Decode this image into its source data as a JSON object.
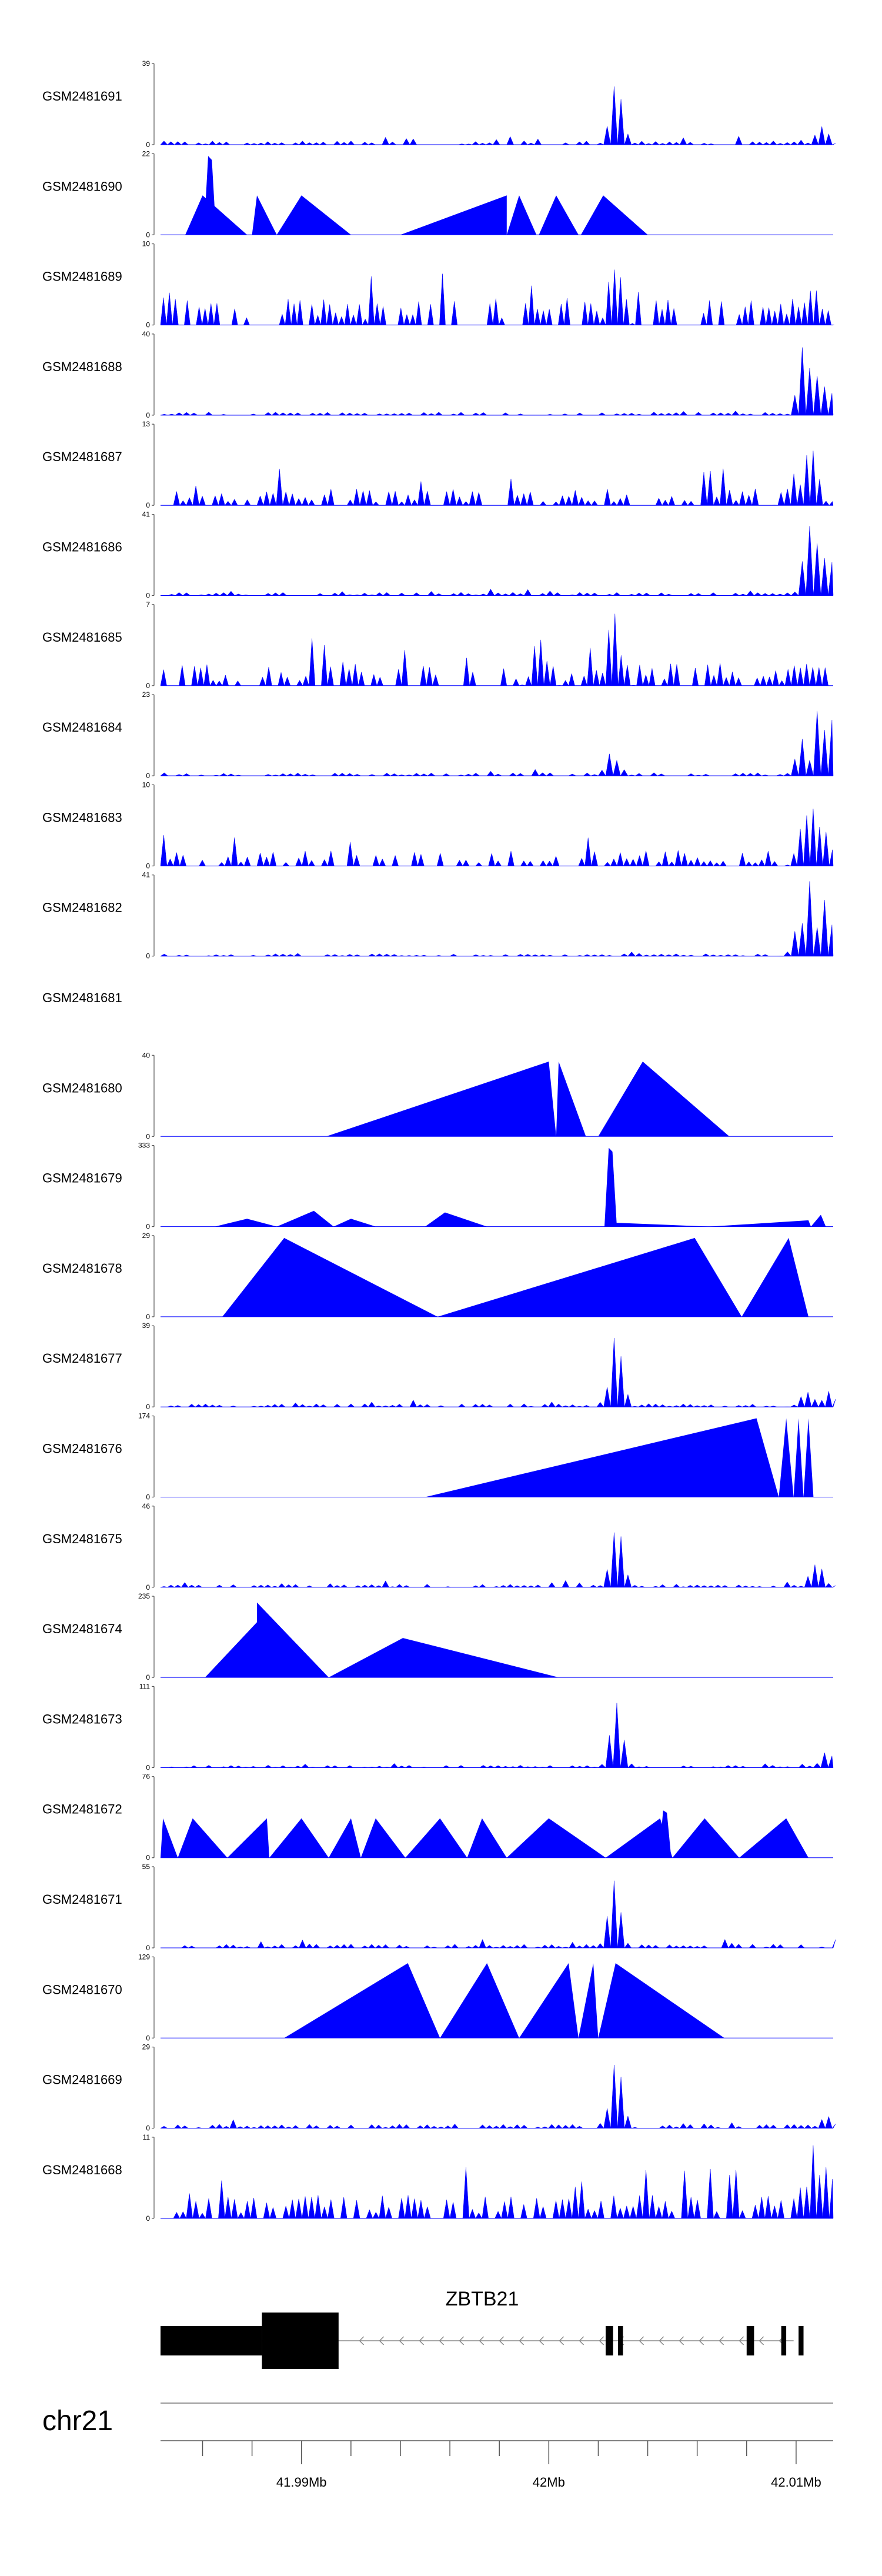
{
  "chart_data": {
    "type": "area",
    "title": "",
    "chromosome": "chr21",
    "colors": {
      "signal": "#0000ff",
      "axis": "#555555",
      "gene": "#000000"
    },
    "x_range_mb": [
      41.9843,
      42.0115
    ],
    "x_ticks": [
      {
        "value": 41.99,
        "label": "41.99Mb"
      },
      {
        "value": 42.0,
        "label": "42Mb"
      },
      {
        "value": 42.01,
        "label": "42.01Mb"
      }
    ],
    "gene": {
      "name": "ZBTB21",
      "strand": "-",
      "start_mb": 41.9843,
      "end_mb": 42.0099,
      "exons_mb": [
        [
          41.9843,
          41.9884
        ],
        [
          41.9884,
          41.9915
        ],
        [
          42.0023,
          42.0026
        ],
        [
          42.0028,
          42.003
        ],
        [
          42.008,
          42.0083
        ],
        [
          42.0094,
          42.0096
        ],
        [
          42.0101,
          42.0103
        ]
      ]
    },
    "tracks": [
      {
        "sample": "GSM2481691",
        "ymax": "39",
        "peaks": [
          [
            42.0026,
            0.9
          ],
          [
            42.0109,
            0.3
          ]
        ],
        "noise": 0.05,
        "spacing": 0.00028,
        "mode": "dense"
      },
      {
        "sample": "GSM2481690",
        "ymax": "22",
        "peaks": [
          [
            41.9863,
            1.0
          ]
        ],
        "noise": 0.0,
        "mode": "sparse",
        "tri": [
          [
            41.9853,
            41.986,
            41.9878,
            0.5
          ],
          [
            41.988,
            41.9882,
            41.989,
            0.5
          ],
          [
            41.989,
            41.99,
            41.992,
            0.5
          ],
          [
            41.994,
            41.9983,
            41.9983,
            0.5
          ],
          [
            41.9983,
            41.9988,
            41.9995,
            0.5
          ],
          [
            41.9996,
            42.0003,
            42.0012,
            0.5
          ],
          [
            42.0013,
            42.0022,
            42.004,
            0.5
          ]
        ]
      },
      {
        "sample": "GSM2481689",
        "ymax": "10",
        "peaks": [
          [
            42.0026,
            0.95
          ],
          [
            42.0106,
            0.6
          ]
        ],
        "noise": 0.35,
        "spacing": 0.00024,
        "mode": "dense"
      },
      {
        "sample": "GSM2481688",
        "ymax": "40",
        "peaks": [
          [
            42.0102,
            0.95
          ],
          [
            42.0106,
            0.6
          ],
          [
            42.0111,
            0.4
          ]
        ],
        "noise": 0.04,
        "spacing": 0.0003,
        "mode": "dense"
      },
      {
        "sample": "GSM2481687",
        "ymax": "13",
        "peaks": [
          [
            42.0105,
            0.95
          ],
          [
            42.0098,
            0.5
          ]
        ],
        "noise": 0.22,
        "spacing": 0.00026,
        "mode": "dense"
      },
      {
        "sample": "GSM2481686",
        "ymax": "41",
        "peaks": [
          [
            42.0104,
            0.95
          ],
          [
            42.0108,
            0.8
          ],
          [
            42.0112,
            0.5
          ]
        ],
        "noise": 0.04,
        "spacing": 0.0003,
        "mode": "dense"
      },
      {
        "sample": "GSM2481685",
        "ymax": "7",
        "peaks": [
          [
            42.0025,
            1.0
          ],
          [
            41.9995,
            0.7
          ]
        ],
        "noise": 0.3,
        "spacing": 0.00025,
        "mode": "dense"
      },
      {
        "sample": "GSM2481684",
        "ymax": "23",
        "peaks": [
          [
            42.0108,
            0.95
          ],
          [
            42.0112,
            0.8
          ],
          [
            42.0024,
            0.35
          ],
          [
            42.0101,
            0.5
          ]
        ],
        "noise": 0.04,
        "spacing": 0.0003,
        "mode": "dense"
      },
      {
        "sample": "GSM2481683",
        "ymax": "10",
        "peaks": [
          [
            42.0106,
            0.95
          ],
          [
            42.0102,
            0.7
          ],
          [
            42.011,
            0.55
          ]
        ],
        "noise": 0.2,
        "spacing": 0.00026,
        "mode": "dense"
      },
      {
        "sample": "GSM2481682",
        "ymax": "41",
        "peaks": [
          [
            42.0104,
            0.95
          ],
          [
            42.011,
            0.9
          ],
          [
            42.01,
            0.5
          ]
        ],
        "noise": 0.03,
        "spacing": 0.0003,
        "mode": "dense"
      },
      {
        "sample": "GSM2481681",
        "ymax": "",
        "peaks": [],
        "noise": 0.0,
        "mode": "empty"
      },
      {
        "sample": "GSM2481680",
        "ymax": "40",
        "peaks": [],
        "noise": 0.0,
        "mode": "sparse",
        "tri": [
          [
            41.991,
            42.0,
            42.0003,
            0.95
          ],
          [
            42.0003,
            42.0004,
            42.0015,
            0.95
          ],
          [
            42.002,
            42.0038,
            42.0073,
            0.95
          ]
        ]
      },
      {
        "sample": "GSM2481679",
        "ymax": "333",
        "peaks": [
          [
            42.0025,
            1.0
          ]
        ],
        "noise": 0.0,
        "mode": "sparse",
        "tri": [
          [
            41.9865,
            41.9878,
            41.989,
            0.1
          ],
          [
            41.989,
            41.9905,
            41.9913,
            0.2
          ],
          [
            41.9913,
            41.992,
            41.993,
            0.1
          ],
          [
            41.995,
            41.9958,
            41.9975,
            0.18
          ],
          [
            42.0026,
            42.0026,
            42.0065,
            0.05
          ],
          [
            42.0065,
            42.0105,
            42.0106,
            0.08
          ],
          [
            42.0106,
            42.011,
            42.0112,
            0.15
          ]
        ]
      },
      {
        "sample": "GSM2481678",
        "ymax": "29",
        "peaks": [],
        "noise": 0.0,
        "mode": "sparse",
        "tri": [
          [
            41.9868,
            41.9893,
            41.9955,
            1.0
          ],
          [
            41.9955,
            42.0059,
            42.0078,
            1.0
          ],
          [
            42.0078,
            42.0097,
            42.0105,
            1.0
          ]
        ]
      },
      {
        "sample": "GSM2481677",
        "ymax": "39",
        "peaks": [
          [
            42.0026,
            0.95
          ],
          [
            42.0103,
            0.25
          ],
          [
            42.0112,
            0.2
          ]
        ],
        "noise": 0.04,
        "spacing": 0.00028,
        "mode": "dense"
      },
      {
        "sample": "GSM2481676",
        "ymax": "174",
        "peaks": [],
        "noise": 0.0,
        "mode": "sparse",
        "tri": [
          [
            41.995,
            42.0084,
            42.0093,
            1.0
          ],
          [
            42.0093,
            42.0096,
            42.0099,
            1.0
          ],
          [
            42.0099,
            42.0101,
            42.0103,
            1.0
          ],
          [
            42.0103,
            42.0105,
            42.0107,
            1.0
          ]
        ]
      },
      {
        "sample": "GSM2481675",
        "ymax": "46",
        "peaks": [
          [
            42.0026,
            0.95
          ],
          [
            42.0107,
            0.4
          ]
        ],
        "noise": 0.04,
        "spacing": 0.00028,
        "mode": "dense"
      },
      {
        "sample": "GSM2481674",
        "ymax": "235",
        "peaks": [],
        "noise": 0.0,
        "mode": "sparse",
        "tri": [
          [
            41.9861,
            41.9882,
            41.9882,
            0.7
          ],
          [
            41.9882,
            41.9882,
            41.9911,
            0.95
          ],
          [
            41.9911,
            41.9941,
            42.0004,
            0.5
          ]
        ]
      },
      {
        "sample": "GSM2481673",
        "ymax": "111",
        "peaks": [
          [
            42.0026,
            0.95
          ],
          [
            42.0111,
            0.25
          ]
        ],
        "noise": 0.03,
        "spacing": 0.0003,
        "mode": "dense"
      },
      {
        "sample": "GSM2481672",
        "ymax": "76",
        "peaks": [
          [
            42.0047,
            0.6
          ]
        ],
        "noise": 0.0,
        "mode": "sparse",
        "tri": [
          [
            41.9843,
            41.9844,
            41.985,
            0.5
          ],
          [
            41.985,
            41.9856,
            41.987,
            0.5
          ],
          [
            41.987,
            41.9886,
            41.9887,
            0.5
          ],
          [
            41.9887,
            41.99,
            41.9911,
            0.5
          ],
          [
            41.9911,
            41.992,
            41.9924,
            0.5
          ],
          [
            41.9924,
            41.993,
            41.9942,
            0.5
          ],
          [
            41.9942,
            41.9956,
            41.9967,
            0.5
          ],
          [
            41.9967,
            41.9973,
            41.9983,
            0.5
          ],
          [
            41.9983,
            42.0,
            42.0023,
            0.5
          ],
          [
            42.0023,
            42.0045,
            42.005,
            0.5
          ],
          [
            42.005,
            42.0063,
            42.0077,
            0.5
          ],
          [
            42.0077,
            42.0096,
            42.0105,
            0.5
          ]
        ]
      },
      {
        "sample": "GSM2481671",
        "ymax": "55",
        "peaks": [
          [
            42.0025,
            0.95
          ]
        ],
        "noise": 0.05,
        "spacing": 0.00028,
        "mode": "dense"
      },
      {
        "sample": "GSM2481670",
        "ymax": "129",
        "peaks": [],
        "noise": 0.0,
        "mode": "sparse",
        "tri": [
          [
            41.9893,
            41.9943,
            41.9956,
            0.95
          ],
          [
            41.9956,
            41.9975,
            41.9988,
            0.95
          ],
          [
            41.9988,
            42.0008,
            42.0012,
            0.95
          ],
          [
            42.0012,
            42.0018,
            42.002,
            0.95
          ],
          [
            42.002,
            42.0027,
            42.0071,
            0.95
          ]
        ]
      },
      {
        "sample": "GSM2481669",
        "ymax": "29",
        "peaks": [
          [
            42.0026,
            0.95
          ],
          [
            42.0111,
            0.2
          ]
        ],
        "noise": 0.05,
        "spacing": 0.00028,
        "mode": "dense"
      },
      {
        "sample": "GSM2481668",
        "ymax": "11",
        "peaks": [
          [
            42.0106,
            0.95
          ],
          [
            42.0111,
            0.8
          ]
        ],
        "noise": 0.3,
        "spacing": 0.00026,
        "mode": "dense"
      }
    ]
  }
}
